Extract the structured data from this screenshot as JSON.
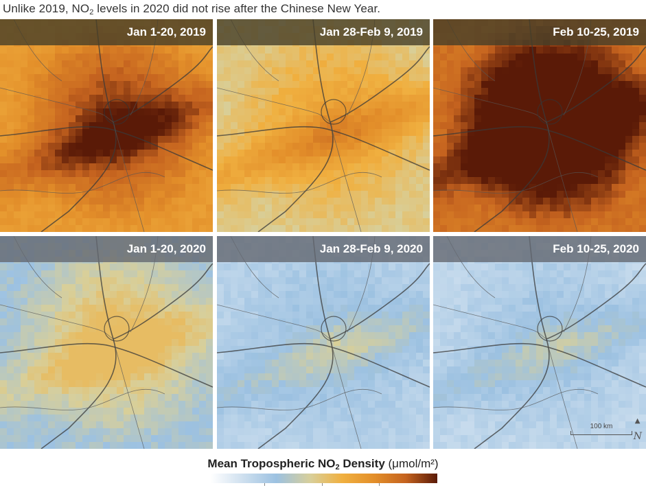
{
  "caption": {
    "before": "Unlike 2019, NO",
    "sub": "2",
    "after": " levels in 2020 did not rise after the Chinese New Year."
  },
  "panels": [
    {
      "label": "Jan 1-20, 2019",
      "year": "2019",
      "level": 0.65
    },
    {
      "label": "Jan 28-Feb 9, 2019",
      "year": "2019",
      "level": 0.45
    },
    {
      "label": "Feb 10-25, 2019",
      "year": "2019",
      "level": 0.8
    },
    {
      "label": "Jan 1-20, 2020",
      "year": "2020",
      "level": 0.32
    },
    {
      "label": "Jan 28-Feb 9, 2020",
      "year": "2020",
      "level": 0.22
    },
    {
      "label": "Feb 10-25, 2020",
      "year": "2020",
      "level": 0.2
    }
  ],
  "scale_bar": {
    "label": "100 km"
  },
  "north_arrow": {
    "symbol": "N",
    "icon": "north-arrow-icon"
  },
  "legend": {
    "title_bold": "Mean Tropospheric NO",
    "title_sub": "2",
    "title_bold_after": " Density",
    "units": " (μmol/m²)",
    "colors": [
      "#ffffff",
      "#9cc1e1",
      "#f0b040",
      "#c5631f",
      "#5a1a07"
    ]
  }
}
